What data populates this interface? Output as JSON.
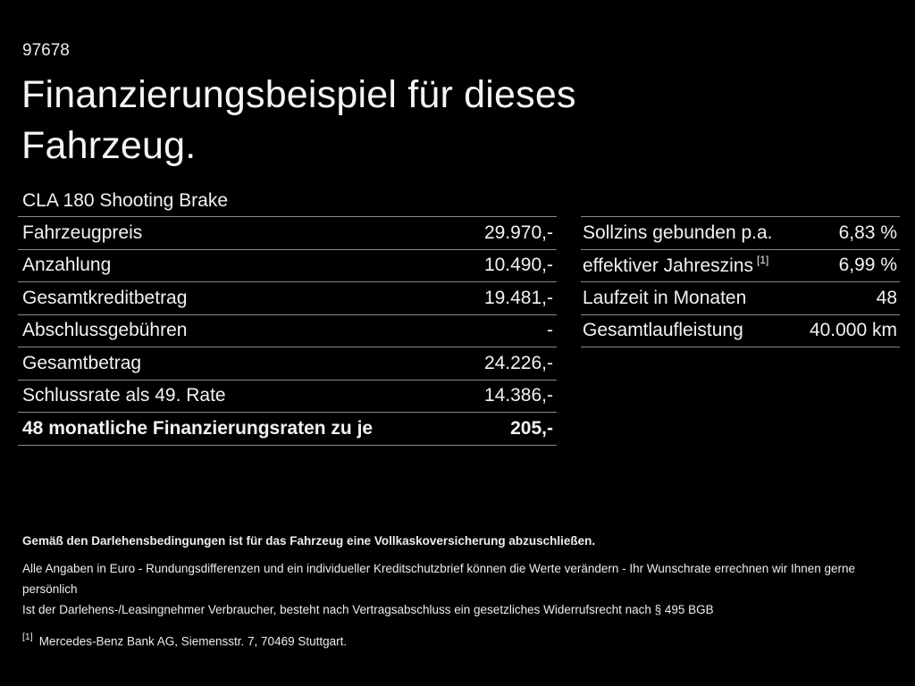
{
  "page": {
    "background_color": "#000000",
    "text_color": "#f2f2f2",
    "divider_color": "#8a8a8a"
  },
  "header": {
    "code": "97678",
    "title_line1": "Finanzierungsbeispiel für dieses",
    "title_line2": "Fahrzeug.",
    "model": "CLA 180 Shooting Brake"
  },
  "left_table": {
    "rows": [
      {
        "label": "Fahrzeugpreis",
        "value": "29.970,-"
      },
      {
        "label": "Anzahlung",
        "value": "10.490,-"
      },
      {
        "label": "Gesamtkreditbetrag",
        "value": "19.481,-"
      },
      {
        "label": "Abschlussgebühren",
        "value": "-"
      },
      {
        "label": "Gesamtbetrag",
        "value": "24.226,-"
      },
      {
        "label": "Schlussrate als 49. Rate",
        "value": "14.386,-"
      },
      {
        "label": "48 monatliche Finanzierungsraten zu je",
        "value": "205,-"
      }
    ]
  },
  "right_table": {
    "rows": [
      {
        "label": "Sollzins gebunden p.a.",
        "sup": "",
        "value": "6,83 %"
      },
      {
        "label": "effektiver Jahreszins",
        "sup": "[1]",
        "value": "6,99 %"
      },
      {
        "label": "Laufzeit in Monaten",
        "sup": "",
        "value": "48"
      },
      {
        "label": "Gesamtlaufleistung",
        "sup": "",
        "value": "40.000 km"
      }
    ]
  },
  "footnotes": {
    "insurance_note": "Gemäß den Darlehensbedingungen ist für das Fahrzeug eine Vollkaskoversicherung abzuschließen.",
    "euro_note": "Alle Angaben in Euro - Rundungsdifferenzen und ein individueller Kreditschutzbrief können die Werte verändern - Ihr Wunschrate errechnen wir Ihnen gerne persönlich",
    "withdrawal_note": "Ist der Darlehens-/Leasingnehmer Verbraucher, besteht nach Vertragsabschluss ein gesetzliches Widerrufsrecht nach § 495 BGB",
    "bank_footnote_marker": "[1]",
    "bank_footnote": "Mercedes-Benz Bank AG, Siemensstr. 7, 70469 Stuttgart."
  }
}
